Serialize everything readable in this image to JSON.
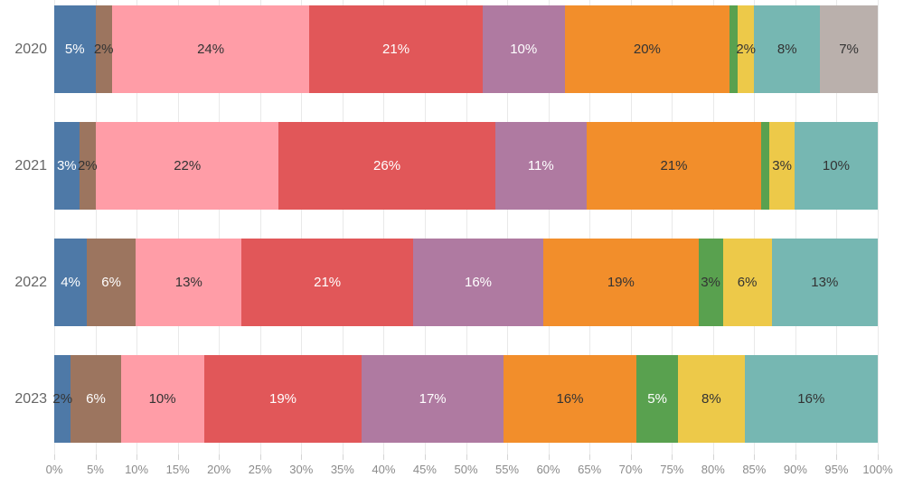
{
  "chart_data": {
    "type": "bar",
    "variant": "horizontal-stacked",
    "title": "",
    "categories": [
      "2020",
      "2021",
      "2022",
      "2023"
    ],
    "palette": {
      "blue": "#4e79a7",
      "brown": "#9c755f",
      "pink": "#ff9da7",
      "red": "#e15759",
      "purple": "#af7aa1",
      "orange": "#f28e2b",
      "green": "#59a14f",
      "yellow": "#edc949",
      "teal": "#76b7b2",
      "gray": "#bab0ac"
    },
    "series_order": [
      "blue",
      "brown",
      "pink",
      "red",
      "purple",
      "orange",
      "green",
      "yellow",
      "teal",
      "gray"
    ],
    "label_colors": {
      "dark": "#333333",
      "light": "#ffffff"
    },
    "rows": [
      {
        "category": "2020",
        "segments": [
          {
            "color": "blue",
            "value": 5,
            "label": "5%",
            "label_color": "light"
          },
          {
            "color": "brown",
            "value": 2,
            "label": "2%",
            "label_color": "dark"
          },
          {
            "color": "pink",
            "value": 24,
            "label": "24%",
            "label_color": "dark"
          },
          {
            "color": "red",
            "value": 21,
            "label": "21%",
            "label_color": "light"
          },
          {
            "color": "purple",
            "value": 10,
            "label": "10%",
            "label_color": "light"
          },
          {
            "color": "orange",
            "value": 20,
            "label": "20%",
            "label_color": "dark"
          },
          {
            "color": "green",
            "value": 1,
            "label": "",
            "label_color": "dark"
          },
          {
            "color": "yellow",
            "value": 2,
            "label": "2%",
            "label_color": "dark"
          },
          {
            "color": "teal",
            "value": 8,
            "label": "8%",
            "label_color": "dark"
          },
          {
            "color": "gray",
            "value": 7,
            "label": "7%",
            "label_color": "dark"
          }
        ]
      },
      {
        "category": "2021",
        "segments": [
          {
            "color": "blue",
            "value": 3,
            "label": "3%",
            "label_color": "light"
          },
          {
            "color": "brown",
            "value": 2,
            "label": "2%",
            "label_color": "dark"
          },
          {
            "color": "pink",
            "value": 22,
            "label": "22%",
            "label_color": "dark"
          },
          {
            "color": "red",
            "value": 26,
            "label": "26%",
            "label_color": "light"
          },
          {
            "color": "purple",
            "value": 11,
            "label": "11%",
            "label_color": "light"
          },
          {
            "color": "orange",
            "value": 21,
            "label": "21%",
            "label_color": "dark"
          },
          {
            "color": "green",
            "value": 1,
            "label": "",
            "label_color": "dark"
          },
          {
            "color": "yellow",
            "value": 3,
            "label": "3%",
            "label_color": "dark"
          },
          {
            "color": "teal",
            "value": 10,
            "label": "10%",
            "label_color": "dark"
          }
        ]
      },
      {
        "category": "2022",
        "segments": [
          {
            "color": "blue",
            "value": 4,
            "label": "4%",
            "label_color": "light"
          },
          {
            "color": "brown",
            "value": 6,
            "label": "6%",
            "label_color": "light"
          },
          {
            "color": "pink",
            "value": 13,
            "label": "13%",
            "label_color": "dark"
          },
          {
            "color": "red",
            "value": 21,
            "label": "21%",
            "label_color": "light"
          },
          {
            "color": "purple",
            "value": 16,
            "label": "16%",
            "label_color": "light"
          },
          {
            "color": "orange",
            "value": 19,
            "label": "19%",
            "label_color": "dark"
          },
          {
            "color": "green",
            "value": 3,
            "label": "3%",
            "label_color": "dark"
          },
          {
            "color": "yellow",
            "value": 6,
            "label": "6%",
            "label_color": "dark"
          },
          {
            "color": "teal",
            "value": 13,
            "label": "13%",
            "label_color": "dark"
          }
        ]
      },
      {
        "category": "2023",
        "segments": [
          {
            "color": "blue",
            "value": 2,
            "label": "2%",
            "label_color": "dark"
          },
          {
            "color": "brown",
            "value": 6,
            "label": "6%",
            "label_color": "light"
          },
          {
            "color": "pink",
            "value": 10,
            "label": "10%",
            "label_color": "dark"
          },
          {
            "color": "red",
            "value": 19,
            "label": "19%",
            "label_color": "light"
          },
          {
            "color": "purple",
            "value": 17,
            "label": "17%",
            "label_color": "light"
          },
          {
            "color": "orange",
            "value": 16,
            "label": "16%",
            "label_color": "dark"
          },
          {
            "color": "green",
            "value": 5,
            "label": "5%",
            "label_color": "light"
          },
          {
            "color": "yellow",
            "value": 8,
            "label": "8%",
            "label_color": "dark"
          },
          {
            "color": "teal",
            "value": 16,
            "label": "16%",
            "label_color": "dark"
          }
        ]
      }
    ],
    "x_axis": {
      "min": 0,
      "max": 100,
      "step": 5,
      "tick_labels": [
        "0%",
        "5%",
        "10%",
        "15%",
        "20%",
        "25%",
        "30%",
        "35%",
        "40%",
        "45%",
        "50%",
        "55%",
        "60%",
        "65%",
        "70%",
        "75%",
        "80%",
        "85%",
        "90%",
        "95%",
        "100%"
      ]
    },
    "grid": true,
    "legend": false
  }
}
